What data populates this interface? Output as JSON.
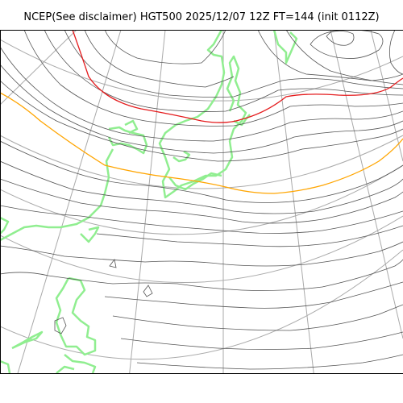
{
  "title": "NCEP(See disclaimer) HGT500 2025/12/07 12Z FT=144 (init 0112Z)",
  "colors": {
    "contour": "#555555",
    "contour_highlight_red": "#e41a1c",
    "contour_highlight_orange": "#ffa500",
    "coastline": "#90ee90",
    "graticule": "#aaaaaa",
    "frame": "#000000",
    "background": "#ffffff"
  }
}
